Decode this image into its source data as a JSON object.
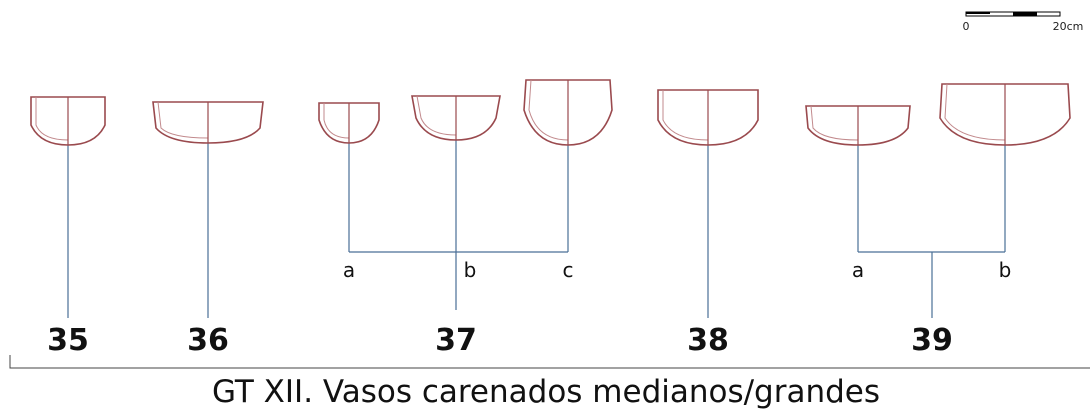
{
  "scale": {
    "start": "0",
    "end": "20cm"
  },
  "groups": [
    {
      "label": "35"
    },
    {
      "label": "36"
    },
    {
      "label": "37",
      "variants": [
        "a",
        "b",
        "c"
      ]
    },
    {
      "label": "38"
    },
    {
      "label": "39",
      "variants": [
        "a",
        "b"
      ]
    }
  ],
  "caption": "GT XII. Vasos carenados medianos/grandes"
}
